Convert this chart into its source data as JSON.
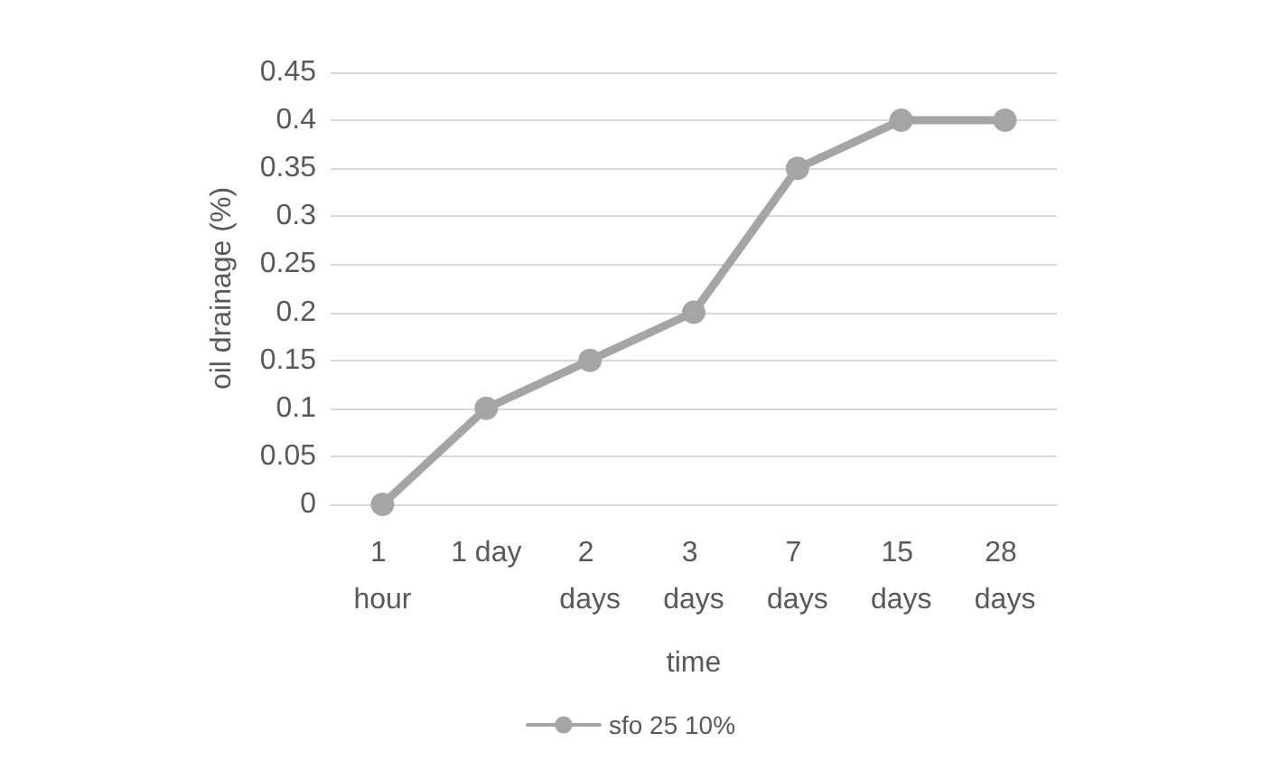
{
  "chart_data": {
    "type": "line",
    "xlabel": "time",
    "ylabel": "oil drainage (%)",
    "categories": [
      "1 hour",
      "1 day",
      "2 days",
      "3 days",
      "7 days",
      "15 days",
      "28 days"
    ],
    "series": [
      {
        "name": "sfo 25 10%",
        "color": "#a5a5a5",
        "values": [
          0,
          0.1,
          0.15,
          0.2,
          0.35,
          0.4,
          0.4
        ]
      }
    ],
    "ylim": [
      0,
      0.45
    ],
    "yticks": [
      0,
      0.05,
      0.1,
      0.15,
      0.2,
      0.25,
      0.3,
      0.35,
      0.4,
      0.45
    ],
    "grid": "y",
    "legend": "bottom",
    "marker": "circle",
    "line_style": "solid"
  }
}
